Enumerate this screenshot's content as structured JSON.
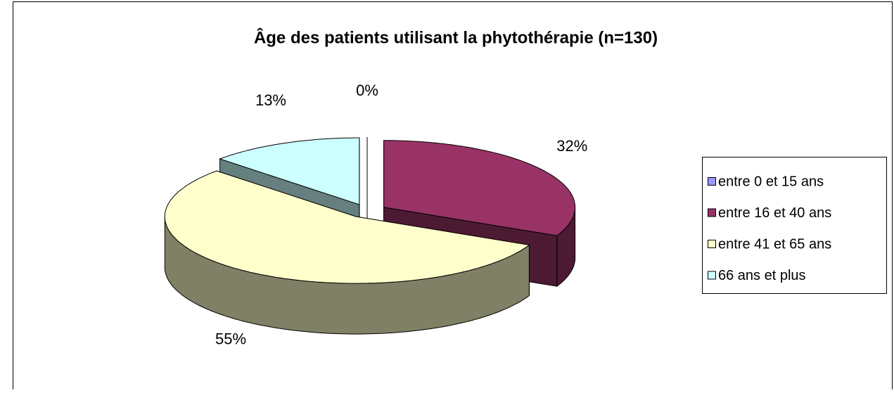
{
  "chart_data": {
    "type": "pie",
    "title": "Âge des patients utilisant la phytothérapie (n=130)",
    "categories": [
      "entre 0 et 15 ans",
      "entre 16 et 40 ans",
      "entre 41 et 65 ans",
      "66 ans et plus"
    ],
    "values": [
      0,
      32,
      55,
      13
    ],
    "value_labels": [
      "0%",
      "32%",
      "55%",
      "13%"
    ],
    "colors": [
      "#9999ff",
      "#993366",
      "#ffffcc",
      "#ccffff"
    ],
    "legend": "right"
  }
}
